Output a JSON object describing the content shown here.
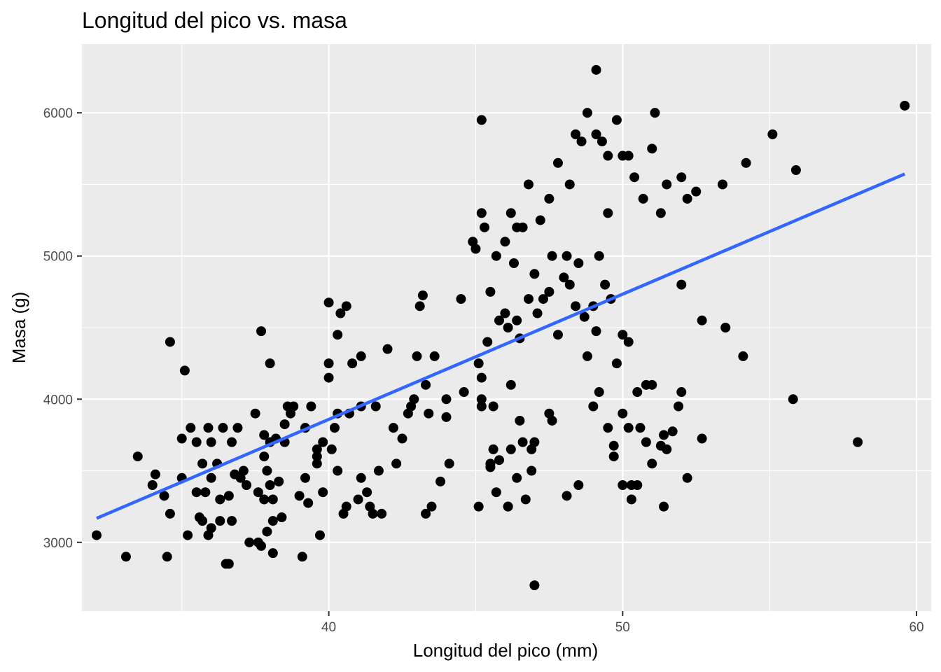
{
  "chart_data": {
    "type": "scatter",
    "title": "Longitud del pico vs. masa",
    "xlabel": "Longitud del pico (mm)",
    "ylabel": "Masa (g)",
    "xlim": [
      31.6,
      60.5
    ],
    "ylim": [
      2520,
      6480
    ],
    "x_ticks": [
      40,
      50,
      60
    ],
    "y_ticks": [
      3000,
      4000,
      5000,
      6000
    ],
    "x_tick_labels": [
      "40",
      "50",
      "60"
    ],
    "y_tick_labels": [
      "3000",
      "4000",
      "5000",
      "6000"
    ],
    "grid": true,
    "background": "#ebebeb",
    "grid_color": "#ffffff",
    "point_color": "#000000",
    "trend_color": "#3366ff",
    "trend_line": {
      "x": [
        32.1,
        59.6
      ],
      "y": [
        3168,
        5573
      ]
    },
    "points": [
      [
        32.1,
        3050
      ],
      [
        33.1,
        2900
      ],
      [
        33.5,
        3600
      ],
      [
        34.0,
        3400
      ],
      [
        34.1,
        3475
      ],
      [
        34.4,
        3325
      ],
      [
        34.5,
        2900
      ],
      [
        34.6,
        3200
      ],
      [
        34.6,
        4400
      ],
      [
        35.0,
        3450
      ],
      [
        35.0,
        3725
      ],
      [
        35.1,
        4200
      ],
      [
        35.2,
        3050
      ],
      [
        35.3,
        3800
      ],
      [
        35.5,
        3350
      ],
      [
        35.5,
        3700
      ],
      [
        35.6,
        3175
      ],
      [
        35.7,
        3150
      ],
      [
        35.7,
        3550
      ],
      [
        35.8,
        3350
      ],
      [
        35.9,
        3800
      ],
      [
        35.9,
        3050
      ],
      [
        36.0,
        3700
      ],
      [
        36.0,
        3100
      ],
      [
        36.0,
        3450
      ],
      [
        36.2,
        3550
      ],
      [
        36.3,
        3300
      ],
      [
        36.3,
        3150
      ],
      [
        36.4,
        3800
      ],
      [
        36.5,
        2850
      ],
      [
        36.6,
        3325
      ],
      [
        36.6,
        2850
      ],
      [
        36.7,
        3150
      ],
      [
        36.7,
        3700
      ],
      [
        36.8,
        3475
      ],
      [
        36.9,
        3800
      ],
      [
        37.0,
        3450
      ],
      [
        37.1,
        3500
      ],
      [
        37.2,
        3400
      ],
      [
        37.3,
        3000
      ],
      [
        37.5,
        3900
      ],
      [
        37.6,
        3350
      ],
      [
        37.6,
        3000
      ],
      [
        37.7,
        4475
      ],
      [
        37.7,
        2975
      ],
      [
        37.8,
        3300
      ],
      [
        37.8,
        3600
      ],
      [
        37.8,
        3750
      ],
      [
        37.9,
        3075
      ],
      [
        37.9,
        3500
      ],
      [
        38.0,
        3400
      ],
      [
        38.0,
        4250
      ],
      [
        38.0,
        3700
      ],
      [
        38.1,
        3300
      ],
      [
        38.1,
        3150
      ],
      [
        38.1,
        2925
      ],
      [
        38.2,
        3725
      ],
      [
        38.3,
        3425
      ],
      [
        38.4,
        3175
      ],
      [
        38.5,
        3700
      ],
      [
        38.5,
        3825
      ],
      [
        38.6,
        3950
      ],
      [
        38.7,
        3900
      ],
      [
        38.8,
        3950
      ],
      [
        39.0,
        3325
      ],
      [
        39.1,
        2900
      ],
      [
        39.2,
        3450
      ],
      [
        39.2,
        3800
      ],
      [
        39.3,
        3275
      ],
      [
        39.4,
        3950
      ],
      [
        39.6,
        3550
      ],
      [
        39.6,
        3600
      ],
      [
        39.6,
        3650
      ],
      [
        39.7,
        3050
      ],
      [
        39.8,
        3350
      ],
      [
        39.8,
        3700
      ],
      [
        40.0,
        4150
      ],
      [
        40.0,
        4250
      ],
      [
        40.0,
        4675
      ],
      [
        40.1,
        3650
      ],
      [
        40.2,
        3800
      ],
      [
        40.3,
        3900
      ],
      [
        40.3,
        3500
      ],
      [
        40.3,
        4450
      ],
      [
        40.4,
        4600
      ],
      [
        40.5,
        3200
      ],
      [
        40.6,
        4650
      ],
      [
        40.6,
        3250
      ],
      [
        40.7,
        3900
      ],
      [
        40.8,
        4250
      ],
      [
        41.0,
        3300
      ],
      [
        41.1,
        4300
      ],
      [
        41.1,
        3450
      ],
      [
        41.1,
        3950
      ],
      [
        41.3,
        3350
      ],
      [
        41.4,
        3250
      ],
      [
        41.5,
        3200
      ],
      [
        41.6,
        3950
      ],
      [
        41.7,
        3500
      ],
      [
        41.8,
        3200
      ],
      [
        42.0,
        4350
      ],
      [
        42.2,
        3800
      ],
      [
        42.3,
        3550
      ],
      [
        42.5,
        3725
      ],
      [
        42.7,
        3900
      ],
      [
        42.8,
        3950
      ],
      [
        42.9,
        4000
      ],
      [
        43.0,
        4300
      ],
      [
        43.1,
        4650
      ],
      [
        43.2,
        4725
      ],
      [
        43.3,
        3200
      ],
      [
        43.3,
        4100
      ],
      [
        43.4,
        3900
      ],
      [
        43.5,
        3250
      ],
      [
        43.6,
        4300
      ],
      [
        43.8,
        3425
      ],
      [
        44.0,
        3875
      ],
      [
        44.0,
        4000
      ],
      [
        44.1,
        3550
      ],
      [
        44.5,
        4700
      ],
      [
        44.6,
        4050
      ],
      [
        45.1,
        4250
      ],
      [
        45.2,
        4000
      ],
      [
        45.2,
        4150
      ],
      [
        45.4,
        4400
      ],
      [
        45.5,
        3550
      ],
      [
        45.6,
        3950
      ],
      [
        45.7,
        3350
      ],
      [
        45.8,
        4550
      ],
      [
        46.0,
        4600
      ],
      [
        46.1,
        3250
      ],
      [
        46.1,
        4500
      ],
      [
        46.2,
        4100
      ],
      [
        46.3,
        4950
      ],
      [
        46.4,
        4550
      ],
      [
        46.5,
        4425
      ],
      [
        46.5,
        3850
      ],
      [
        46.8,
        4700
      ],
      [
        46.9,
        3500
      ],
      [
        47.1,
        4600
      ],
      [
        47.3,
        4700
      ],
      [
        47.5,
        4750
      ],
      [
        47.6,
        5000
      ],
      [
        47.8,
        4450
      ],
      [
        48.0,
        4850
      ],
      [
        48.1,
        5000
      ],
      [
        48.2,
        4800
      ],
      [
        48.4,
        4650
      ],
      [
        48.5,
        4950
      ],
      [
        48.7,
        4575
      ],
      [
        48.8,
        4300
      ],
      [
        49.0,
        4650
      ],
      [
        49.1,
        4475
      ],
      [
        49.2,
        5000
      ],
      [
        49.4,
        4800
      ],
      [
        49.5,
        5300
      ],
      [
        49.6,
        4700
      ],
      [
        49.8,
        4250
      ],
      [
        50.0,
        4450
      ],
      [
        50.2,
        4400
      ],
      [
        45.2,
        5950
      ],
      [
        45.2,
        5300
      ],
      [
        45.3,
        5200
      ],
      [
        45.5,
        4750
      ],
      [
        45.7,
        5000
      ],
      [
        46.0,
        5100
      ],
      [
        46.2,
        5300
      ],
      [
        46.4,
        5200
      ],
      [
        46.6,
        5200
      ],
      [
        46.8,
        5500
      ],
      [
        47.0,
        4875
      ],
      [
        47.2,
        5250
      ],
      [
        47.5,
        5400
      ],
      [
        47.8,
        5650
      ],
      [
        48.2,
        5500
      ],
      [
        48.4,
        5850
      ],
      [
        48.6,
        5800
      ],
      [
        48.8,
        6000
      ],
      [
        49.1,
        5850
      ],
      [
        49.3,
        5800
      ],
      [
        49.5,
        5700
      ],
      [
        49.8,
        5950
      ],
      [
        50.0,
        5700
      ],
      [
        50.2,
        5700
      ],
      [
        50.4,
        5550
      ],
      [
        50.7,
        5400
      ],
      [
        51.0,
        5750
      ],
      [
        51.1,
        6000
      ],
      [
        51.3,
        5300
      ],
      [
        51.5,
        5500
      ],
      [
        49.1,
        6300
      ],
      [
        52.0,
        5550
      ],
      [
        52.2,
        5400
      ],
      [
        52.5,
        5450
      ],
      [
        53.4,
        5500
      ],
      [
        54.2,
        5650
      ],
      [
        55.1,
        5850
      ],
      [
        55.9,
        5600
      ],
      [
        59.6,
        6050
      ],
      [
        52.0,
        4800
      ],
      [
        52.7,
        4550
      ],
      [
        53.5,
        4500
      ],
      [
        54.1,
        4300
      ],
      [
        55.8,
        4000
      ],
      [
        58.0,
        3700
      ],
      [
        45.1,
        3250
      ],
      [
        45.2,
        3950
      ],
      [
        45.5,
        3525
      ],
      [
        45.6,
        3650
      ],
      [
        45.8,
        3575
      ],
      [
        46.1,
        3250
      ],
      [
        46.2,
        3650
      ],
      [
        46.4,
        3450
      ],
      [
        46.6,
        3700
      ],
      [
        46.7,
        3300
      ],
      [
        46.9,
        3650
      ],
      [
        47.0,
        2700
      ],
      [
        47.0,
        3700
      ],
      [
        47.5,
        3900
      ],
      [
        47.6,
        3850
      ],
      [
        48.1,
        3325
      ],
      [
        48.5,
        3400
      ],
      [
        49.0,
        3950
      ],
      [
        49.5,
        3800
      ],
      [
        49.7,
        3675
      ],
      [
        50.0,
        3900
      ],
      [
        50.2,
        3800
      ],
      [
        50.3,
        3400
      ],
      [
        50.5,
        3400
      ],
      [
        50.6,
        3800
      ],
      [
        50.8,
        3700
      ],
      [
        51.0,
        3550
      ],
      [
        51.3,
        3675
      ],
      [
        51.4,
        3750
      ],
      [
        51.5,
        3650
      ],
      [
        51.7,
        3775
      ],
      [
        51.9,
        3950
      ],
      [
        52.0,
        4050
      ],
      [
        52.2,
        3450
      ],
      [
        52.7,
        3725
      ],
      [
        50.5,
        4050
      ],
      [
        50.8,
        4100
      ],
      [
        51.0,
        4100
      ],
      [
        51.4,
        3250
      ],
      [
        49.2,
        4050
      ],
      [
        49.7,
        3600
      ],
      [
        50.3,
        3300
      ],
      [
        50.0,
        3400
      ],
      [
        44.9,
        5100
      ],
      [
        45.0,
        5050
      ]
    ]
  }
}
